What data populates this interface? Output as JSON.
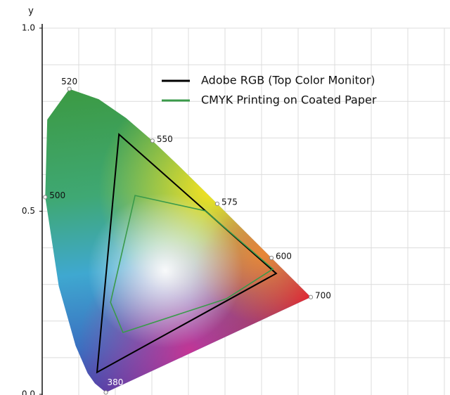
{
  "chart_data": {
    "type": "chromaticity",
    "ylabel": "y",
    "xlim": [
      0,
      1.1
    ],
    "ylim": [
      0,
      1
    ],
    "yticks": [
      {
        "value": 0,
        "label": "0.0"
      },
      0.5,
      {
        "value": 1,
        "label": "1.0"
      }
    ],
    "xgrid": [
      0.1,
      0.2,
      0.3,
      0.4,
      0.5,
      0.6,
      0.7,
      0.8,
      0.9,
      1.0,
      1.1
    ],
    "ygrid": [
      0.1,
      0.2,
      0.3,
      0.4,
      0.5,
      0.6,
      0.7,
      0.8,
      0.9,
      1.0
    ],
    "grid": true,
    "legend": "top-right",
    "locus": {
      "wavelengths": [
        "380",
        null,
        null,
        null,
        null,
        "500",
        null,
        "520",
        null,
        null,
        "550",
        null,
        null,
        "575",
        null,
        null,
        "600",
        null,
        "700"
      ],
      "x": [
        0.1741,
        0.144,
        0.1241,
        0.0913,
        0.0454,
        0.0082,
        0.0139,
        0.0743,
        0.1547,
        0.2296,
        0.3016,
        0.3731,
        0.4441,
        0.4788,
        0.5125,
        0.5752,
        0.627,
        0.6915,
        0.7347
      ],
      "y": [
        0.005,
        0.0297,
        0.0578,
        0.1327,
        0.295,
        0.5384,
        0.7502,
        0.8338,
        0.8059,
        0.7543,
        0.6923,
        0.6245,
        0.5547,
        0.5202,
        0.4866,
        0.4242,
        0.3725,
        0.3083,
        0.2653
      ]
    },
    "series": [
      {
        "name": "Adobe RGB (Top Color Monitor)",
        "color": "#000000",
        "x": [
          0.21,
          0.64,
          0.15
        ],
        "y": [
          0.71,
          0.33,
          0.06
        ]
      },
      {
        "name": "CMYK Printing on Coated Paper",
        "color": "#3a9a4a",
        "x": [
          0.254,
          0.446,
          0.631,
          0.504,
          0.221,
          0.187
        ],
        "y": [
          0.543,
          0.501,
          0.342,
          0.261,
          0.169,
          0.251
        ]
      }
    ]
  }
}
